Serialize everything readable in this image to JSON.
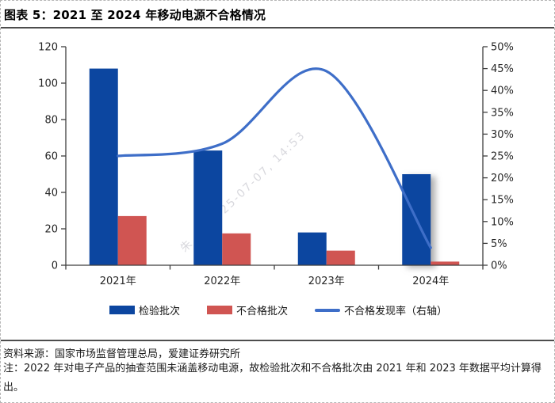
{
  "page": {
    "title": "图表 5：2021 至 2024 年移动电源不合格情况",
    "source": "资料来源：国家市场监督管理总局，爱建证券研究所",
    "note": "注：2022 年对电子产品的抽查范围未涵盖移动电源，故检验批次和不合格批次由 2021 年和 2023 年数据平均计算得出。",
    "watermark": "朱　　2025-07-07, 14:53"
  },
  "chart_data": {
    "type": "combo-bar-line",
    "title": "2021 至 2024 年移动电源不合格情况",
    "categories": [
      "2021年",
      "2022年",
      "2023年",
      "2024年"
    ],
    "series": [
      {
        "name": "检验批次",
        "type": "bar",
        "axis": "left",
        "color": "#0C46A0",
        "values": [
          108,
          63,
          18,
          50
        ]
      },
      {
        "name": "不合格批次",
        "type": "bar",
        "axis": "left",
        "color": "#D05552",
        "values": [
          27,
          17.5,
          8,
          2
        ]
      },
      {
        "name": "不合格发现率（右轴）",
        "type": "line",
        "axis": "right",
        "color": "#3E6EC8",
        "values": [
          25,
          27.8,
          44.4,
          4
        ]
      }
    ],
    "left_axis": {
      "min": 0,
      "max": 120,
      "step": 20,
      "ticks": [
        "0",
        "20",
        "40",
        "60",
        "80",
        "100",
        "120"
      ]
    },
    "right_axis": {
      "min": 0,
      "max": 50,
      "step": 5,
      "format": "percent",
      "ticks": [
        "0%",
        "5%",
        "10%",
        "15%",
        "20%",
        "25%",
        "30%",
        "35%",
        "40%",
        "45%",
        "50%"
      ]
    },
    "grid": false,
    "legend_position": "bottom",
    "style_notes": {
      "shadow_on_last_blue_bar": true,
      "axis_color": "#3f3f3f",
      "label_color": "#262626"
    }
  }
}
